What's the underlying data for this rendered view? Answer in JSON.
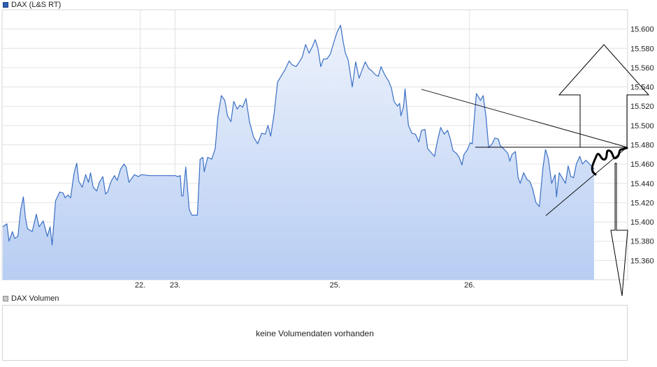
{
  "price_legend": "DAX (L&S RT)",
  "volume_legend": "DAX Volumen",
  "volume_message": "keine Volumendaten vorhanden",
  "colors": {
    "line": "#3a6fc4",
    "area_top": "#eef3fc",
    "area_bottom": "#b7cdf3",
    "grid": "#e2e2e2",
    "annotation": "#000000"
  },
  "chart_data": {
    "type": "area",
    "title": "",
    "xlabel": "",
    "ylabel": "",
    "ylim": [
      15340,
      15620
    ],
    "yticks": [
      15360,
      15380,
      15400,
      15420,
      15440,
      15460,
      15480,
      15500,
      15520,
      15540,
      15560,
      15580,
      15600
    ],
    "ytick_labels": [
      "15.360",
      "15.380",
      "15.400",
      "15.420",
      "15.440",
      "15.460",
      "15.480",
      "15.500",
      "15.520",
      "15.540",
      "15.560",
      "15.580",
      "15.600"
    ],
    "xticks": [
      {
        "label": "22.",
        "pos": 0.2323
      },
      {
        "label": "23.",
        "pos": 0.2914
      },
      {
        "label": "25.",
        "pos": 0.5618
      },
      {
        "label": "26.",
        "pos": 0.7893
      }
    ],
    "grid": true,
    "series": [
      {
        "values": [
          [
            0.0,
            15395
          ],
          [
            0.007,
            15398
          ],
          [
            0.0105,
            15380
          ],
          [
            0.0162,
            15390
          ],
          [
            0.0202,
            15383
          ],
          [
            0.0255,
            15385
          ],
          [
            0.0301,
            15412
          ],
          [
            0.0347,
            15426
          ],
          [
            0.0382,
            15405
          ],
          [
            0.0417,
            15393
          ],
          [
            0.0498,
            15390
          ],
          [
            0.0567,
            15408
          ],
          [
            0.0614,
            15395
          ],
          [
            0.0683,
            15401
          ],
          [
            0.0753,
            15385
          ],
          [
            0.08,
            15395
          ],
          [
            0.0834,
            15376
          ],
          [
            0.0892,
            15422
          ],
          [
            0.0962,
            15431
          ],
          [
            0.102,
            15430
          ],
          [
            0.1054,
            15425
          ],
          [
            0.1101,
            15428
          ],
          [
            0.1147,
            15425
          ],
          [
            0.1205,
            15450
          ],
          [
            0.1251,
            15461
          ],
          [
            0.1286,
            15442
          ],
          [
            0.1344,
            15436
          ],
          [
            0.1402,
            15449
          ],
          [
            0.1449,
            15441
          ],
          [
            0.1483,
            15451
          ],
          [
            0.153,
            15436
          ],
          [
            0.1588,
            15432
          ],
          [
            0.1634,
            15441
          ],
          [
            0.1692,
            15447
          ],
          [
            0.1738,
            15429
          ],
          [
            0.1773,
            15431
          ],
          [
            0.1831,
            15442
          ],
          [
            0.1889,
            15448
          ],
          [
            0.1935,
            15443
          ],
          [
            0.1993,
            15455
          ],
          [
            0.2051,
            15460
          ],
          [
            0.2086,
            15457
          ],
          [
            0.2133,
            15441
          ],
          [
            0.2167,
            15444
          ],
          [
            0.2225,
            15449
          ],
          [
            0.2295,
            15447
          ],
          [
            0.2341,
            15449
          ],
          [
            0.2491,
            15448
          ],
          [
            0.27,
            15448
          ],
          [
            0.292,
            15448
          ],
          [
            0.2955,
            15447
          ],
          [
            0.3001,
            15448
          ],
          [
            0.3024,
            15427
          ],
          [
            0.3048,
            15427
          ],
          [
            0.3094,
            15457
          ],
          [
            0.3152,
            15413
          ],
          [
            0.3198,
            15407
          ],
          [
            0.3291,
            15407
          ],
          [
            0.3337,
            15465
          ],
          [
            0.3384,
            15467
          ],
          [
            0.3407,
            15452
          ],
          [
            0.3465,
            15467
          ],
          [
            0.3534,
            15465
          ],
          [
            0.3592,
            15476
          ],
          [
            0.3638,
            15509
          ],
          [
            0.3696,
            15531
          ],
          [
            0.3754,
            15526
          ],
          [
            0.38,
            15510
          ],
          [
            0.3858,
            15504
          ],
          [
            0.3905,
            15525
          ],
          [
            0.3963,
            15517
          ],
          [
            0.4009,
            15521
          ],
          [
            0.4055,
            15519
          ],
          [
            0.4113,
            15528
          ],
          [
            0.4171,
            15504
          ],
          [
            0.4241,
            15488
          ],
          [
            0.431,
            15481
          ],
          [
            0.438,
            15492
          ],
          [
            0.4438,
            15491
          ],
          [
            0.4485,
            15500
          ],
          [
            0.4531,
            15489
          ],
          [
            0.4589,
            15512
          ],
          [
            0.4647,
            15545
          ],
          [
            0.4705,
            15551
          ],
          [
            0.4774,
            15558
          ],
          [
            0.4844,
            15567
          ],
          [
            0.489,
            15563
          ],
          [
            0.496,
            15561
          ],
          [
            0.5006,
            15565
          ],
          [
            0.5064,
            15571
          ],
          [
            0.5122,
            15584
          ],
          [
            0.518,
            15575
          ],
          [
            0.5238,
            15582
          ],
          [
            0.5284,
            15589
          ],
          [
            0.533,
            15580
          ],
          [
            0.5377,
            15561
          ],
          [
            0.5423,
            15569
          ],
          [
            0.5481,
            15569
          ],
          [
            0.5539,
            15574
          ],
          [
            0.5597,
            15586
          ],
          [
            0.5655,
            15597
          ],
          [
            0.5713,
            15604
          ],
          [
            0.5759,
            15586
          ],
          [
            0.5794,
            15575
          ],
          [
            0.5841,
            15568
          ],
          [
            0.591,
            15540
          ],
          [
            0.5968,
            15566
          ],
          [
            0.6026,
            15549
          ],
          [
            0.6061,
            15555
          ],
          [
            0.613,
            15566
          ],
          [
            0.6188,
            15559
          ],
          [
            0.6235,
            15557
          ],
          [
            0.6293,
            15553
          ],
          [
            0.6351,
            15551
          ],
          [
            0.6397,
            15561
          ],
          [
            0.6455,
            15553
          ],
          [
            0.6525,
            15546
          ],
          [
            0.6571,
            15539
          ],
          [
            0.6617,
            15525
          ],
          [
            0.6675,
            15520
          ],
          [
            0.671,
            15523
          ],
          [
            0.6733,
            15510
          ],
          [
            0.6779,
            15520
          ],
          [
            0.6803,
            15538
          ],
          [
            0.6861,
            15500
          ],
          [
            0.6919,
            15492
          ],
          [
            0.6977,
            15491
          ],
          [
            0.7035,
            15483
          ],
          [
            0.7081,
            15495
          ],
          [
            0.7139,
            15496
          ],
          [
            0.7186,
            15476
          ],
          [
            0.7244,
            15472
          ],
          [
            0.7302,
            15468
          ],
          [
            0.7348,
            15483
          ],
          [
            0.7406,
            15498
          ],
          [
            0.7464,
            15491
          ],
          [
            0.7522,
            15495
          ],
          [
            0.7568,
            15486
          ],
          [
            0.7614,
            15474
          ],
          [
            0.7672,
            15471
          ],
          [
            0.7719,
            15467
          ],
          [
            0.7765,
            15459
          ],
          [
            0.78,
            15470
          ],
          [
            0.7858,
            15475
          ],
          [
            0.7904,
            15482
          ],
          [
            0.7939,
            15481
          ],
          [
            0.8009,
            15533
          ],
          [
            0.8043,
            15530
          ],
          [
            0.8078,
            15526
          ],
          [
            0.8124,
            15531
          ],
          [
            0.8171,
            15509
          ],
          [
            0.8217,
            15477
          ],
          [
            0.8275,
            15481
          ],
          [
            0.8321,
            15487
          ],
          [
            0.8379,
            15486
          ],
          [
            0.8414,
            15479
          ],
          [
            0.8484,
            15475
          ],
          [
            0.8542,
            15471
          ],
          [
            0.8576,
            15463
          ],
          [
            0.8611,
            15470
          ],
          [
            0.8669,
            15473
          ],
          [
            0.8715,
            15446
          ],
          [
            0.875,
            15440
          ],
          [
            0.8808,
            15451
          ],
          [
            0.8866,
            15444
          ],
          [
            0.8912,
            15442
          ],
          [
            0.8958,
            15435
          ],
          [
            0.9016,
            15420
          ],
          [
            0.9074,
            15416
          ],
          [
            0.9132,
            15455
          ],
          [
            0.9179,
            15475
          ],
          [
            0.9225,
            15466
          ],
          [
            0.9283,
            15440
          ],
          [
            0.9341,
            15449
          ],
          [
            0.9364,
            15426
          ],
          [
            0.941,
            15451
          ],
          [
            0.9469,
            15445
          ],
          [
            0.9515,
            15440
          ],
          [
            0.9561,
            15458
          ],
          [
            0.9607,
            15447
          ],
          [
            0.9654,
            15446
          ],
          [
            0.97,
            15460
          ],
          [
            0.9758,
            15468
          ],
          [
            0.9804,
            15460
          ],
          [
            0.9862,
            15464
          ],
          [
            1.0,
            15455
          ]
        ]
      }
    ]
  }
}
